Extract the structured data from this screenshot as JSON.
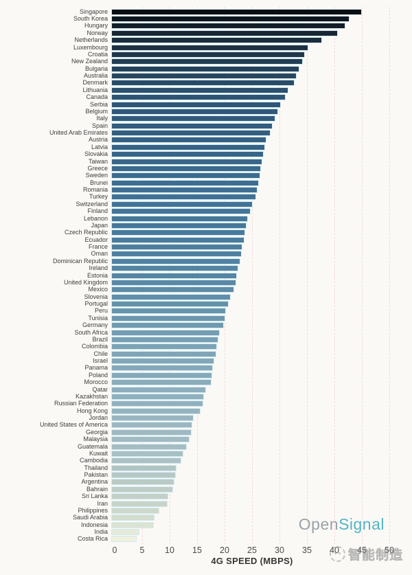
{
  "chart_data": {
    "type": "bar",
    "orientation": "horizontal",
    "xlabel": "4G SPEED (MBPS)",
    "xlim": [
      0,
      50
    ],
    "x_ticks": [
      0,
      5,
      10,
      15,
      20,
      25,
      30,
      35,
      40,
      45,
      50
    ],
    "grid": "vertical dashed gridlines every 5 Mbps, pale pink",
    "legend": "none",
    "categories": [
      "Singapore",
      "South Korea",
      "Hungary",
      "Norway",
      "Netherlands",
      "Luxembourg",
      "Croatia",
      "New Zealand",
      "Bulgaria",
      "Australia",
      "Denmark",
      "Lithuania",
      "Canada",
      "Serbia",
      "Belgium",
      "Italy",
      "Spain",
      "United Arab Emirates",
      "Austria",
      "Latvia",
      "Slovakia",
      "Taiwan",
      "Greece",
      "Sweden",
      "Brunei",
      "Romania",
      "Turkey",
      "Switzerland",
      "Finland",
      "Lebanon",
      "Japan",
      "Czech Republic",
      "Ecuador",
      "France",
      "Oman",
      "Dominican Republic",
      "Ireland",
      "Estonia",
      "United Kingdom",
      "Mexico",
      "Slovenia",
      "Portugal",
      "Peru",
      "Tunisia",
      "Germany",
      "South Africa",
      "Brazil",
      "Colombia",
      "Chile",
      "Israel",
      "Panama",
      "Poland",
      "Morocco",
      "Qatar",
      "Kazakhstan",
      "Russian Federation",
      "Hong Kong",
      "Jordan",
      "United States of America",
      "Georgia",
      "Malaysia",
      "Guatemala",
      "Kuwait",
      "Cambodia",
      "Thailand",
      "Pakistan",
      "Argentina",
      "Bahrain",
      "Sri Lanka",
      "Iran",
      "Philippines",
      "Saudi Arabia",
      "Indonesia",
      "India",
      "Costa Rica"
    ],
    "values": [
      45.6,
      43.4,
      42.6,
      41.2,
      38.4,
      35.9,
      35.2,
      34.9,
      34.3,
      33.8,
      33.4,
      32.2,
      31.8,
      30.9,
      30.4,
      29.9,
      29.4,
      29.0,
      28.2,
      28.0,
      27.7,
      27.5,
      27.3,
      27.1,
      26.9,
      26.6,
      26.4,
      25.7,
      25.4,
      24.9,
      24.6,
      24.4,
      24.2,
      23.9,
      23.8,
      23.5,
      23.1,
      22.9,
      22.7,
      22.4,
      21.7,
      21.4,
      20.9,
      20.7,
      20.5,
      19.7,
      19.5,
      19.3,
      19.1,
      18.7,
      18.5,
      18.4,
      18.2,
      17.3,
      16.9,
      16.7,
      16.2,
      15.0,
      14.8,
      14.6,
      14.3,
      13.7,
      13.1,
      12.8,
      11.9,
      11.7,
      11.5,
      11.3,
      10.4,
      10.2,
      8.7,
      7.9,
      7.8,
      5.1,
      4.6
    ],
    "bar_color_gradient_stops": [
      {
        "pos": 0.0,
        "color": "#0a0d12"
      },
      {
        "pos": 0.04,
        "color": "#182634"
      },
      {
        "pos": 0.093,
        "color": "#233c51"
      },
      {
        "pos": 0.16,
        "color": "#2e5474"
      },
      {
        "pos": 0.347,
        "color": "#3f7095"
      },
      {
        "pos": 0.5,
        "color": "#5586a3"
      },
      {
        "pos": 0.64,
        "color": "#7da3b6"
      },
      {
        "pos": 0.747,
        "color": "#93b2bf"
      },
      {
        "pos": 0.84,
        "color": "#a9bfc3"
      },
      {
        "pos": 0.907,
        "color": "#bfcdc6"
      },
      {
        "pos": 0.96,
        "color": "#d3dccd"
      },
      {
        "pos": 1.0,
        "color": "#eff1dd"
      }
    ],
    "bar_edge_color": "#d0eaf2"
  },
  "branding": {
    "logo_open": "Open",
    "logo_signal": "Signal",
    "logo_open_color": "#98a2a8",
    "logo_signal_color": "#52b5c6"
  },
  "watermark": {
    "text": "智能制造",
    "color": "#9e9e9e"
  },
  "colors": {
    "background": "#fbf9f6",
    "gridline": "#f0d8da",
    "label_text": "#3c3c3c",
    "tick_text": "#4a4a4a"
  }
}
